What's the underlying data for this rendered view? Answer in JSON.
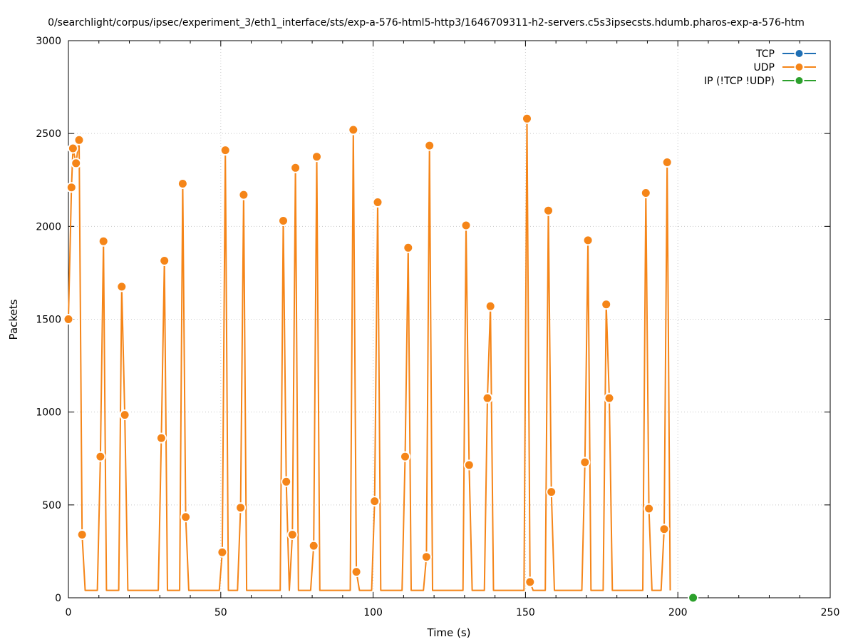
{
  "chart_data": {
    "type": "line",
    "title": "0/searchlight/corpus/ipsec/experiment_3/eth1_interface/sts/exp-a-576-html5-http3/1646709311-h2-servers.c5s3ipsecsts.hdumb.pharos-exp-a-576-htm",
    "xlabel": "Time (s)",
    "ylabel": "Packets",
    "xlim": [
      0,
      250
    ],
    "ylim": [
      0,
      3000
    ],
    "x_ticks": [
      "0",
      "50",
      "100",
      "150",
      "200",
      "250"
    ],
    "y_ticks": [
      "0",
      "500",
      "1000",
      "1500",
      "2000",
      "2500",
      "3000"
    ],
    "x_tick_values": [
      0,
      50,
      100,
      150,
      200,
      250
    ],
    "y_tick_values": [
      0,
      500,
      1000,
      1500,
      2000,
      2500,
      3000
    ],
    "grid": true,
    "legend_position": "top-right",
    "series": [
      {
        "name": "TCP",
        "color": "#1f6fb4",
        "points": []
      },
      {
        "name": "UDP",
        "color": "#f58518",
        "points": [
          [
            0,
            1500
          ],
          [
            1,
            2210
          ],
          [
            1.5,
            2420
          ],
          [
            2.5,
            2340
          ],
          [
            3.5,
            2465
          ],
          [
            4.5,
            340
          ],
          [
            5.5,
            40
          ],
          [
            9.5,
            40
          ],
          [
            10.5,
            760
          ],
          [
            11.5,
            1920
          ],
          [
            12.5,
            40
          ],
          [
            16.5,
            40
          ],
          [
            17.5,
            1675
          ],
          [
            18.5,
            985
          ],
          [
            19.5,
            40
          ],
          [
            29.5,
            40
          ],
          [
            30.5,
            860
          ],
          [
            31.5,
            1815
          ],
          [
            32.5,
            40
          ],
          [
            36.5,
            40
          ],
          [
            37.5,
            2230
          ],
          [
            38.5,
            435
          ],
          [
            39.5,
            40
          ],
          [
            49.5,
            40
          ],
          [
            50.5,
            245
          ],
          [
            51.5,
            2410
          ],
          [
            52.5,
            40
          ],
          [
            55.5,
            40
          ],
          [
            56.5,
            485
          ],
          [
            57.5,
            2170
          ],
          [
            58.5,
            40
          ],
          [
            69.5,
            40
          ],
          [
            70.5,
            2030
          ],
          [
            71.5,
            625
          ],
          [
            72.5,
            40
          ],
          [
            73.5,
            340
          ],
          [
            74.5,
            2315
          ],
          [
            75.5,
            40
          ],
          [
            79.5,
            40
          ],
          [
            80.5,
            280
          ],
          [
            81.5,
            2375
          ],
          [
            82.5,
            40
          ],
          [
            92.5,
            40
          ],
          [
            93.5,
            2520
          ],
          [
            94.5,
            140
          ],
          [
            95.5,
            40
          ],
          [
            99.5,
            40
          ],
          [
            100.5,
            520
          ],
          [
            101.5,
            2130
          ],
          [
            102.5,
            40
          ],
          [
            109.5,
            40
          ],
          [
            110.5,
            760
          ],
          [
            111.5,
            1885
          ],
          [
            112.5,
            40
          ],
          [
            116.5,
            40
          ],
          [
            117.5,
            220
          ],
          [
            118.5,
            2435
          ],
          [
            119.5,
            40
          ],
          [
            129.5,
            40
          ],
          [
            130.5,
            2005
          ],
          [
            131.5,
            715
          ],
          [
            132.5,
            40
          ],
          [
            136.5,
            40
          ],
          [
            137.5,
            1075
          ],
          [
            138.5,
            1570
          ],
          [
            139.5,
            40
          ],
          [
            149.5,
            40
          ],
          [
            150.5,
            2580
          ],
          [
            151.5,
            85
          ],
          [
            152.5,
            40
          ],
          [
            156.5,
            40
          ],
          [
            157.5,
            2085
          ],
          [
            158.5,
            570
          ],
          [
            159.5,
            40
          ],
          [
            168.5,
            40
          ],
          [
            169.5,
            730
          ],
          [
            170.5,
            1925
          ],
          [
            171.5,
            40
          ],
          [
            175.5,
            40
          ],
          [
            176.5,
            1580
          ],
          [
            177.5,
            1075
          ],
          [
            178.5,
            40
          ],
          [
            188.5,
            40
          ],
          [
            189.5,
            2180
          ],
          [
            190.5,
            480
          ],
          [
            191.5,
            40
          ],
          [
            194.5,
            40
          ],
          [
            195.5,
            370
          ],
          [
            196.5,
            2345
          ],
          [
            197.5,
            40
          ]
        ],
        "markers": [
          [
            0,
            1500
          ],
          [
            1,
            2210
          ],
          [
            1.5,
            2420
          ],
          [
            2.5,
            2340
          ],
          [
            3.5,
            2465
          ],
          [
            4.5,
            340
          ],
          [
            10.5,
            760
          ],
          [
            11.5,
            1920
          ],
          [
            17.5,
            1675
          ],
          [
            18.5,
            985
          ],
          [
            30.5,
            860
          ],
          [
            31.5,
            1815
          ],
          [
            37.5,
            2230
          ],
          [
            38.5,
            435
          ],
          [
            50.5,
            245
          ],
          [
            51.5,
            2410
          ],
          [
            56.5,
            485
          ],
          [
            57.5,
            2170
          ],
          [
            70.5,
            2030
          ],
          [
            71.5,
            625
          ],
          [
            73.5,
            340
          ],
          [
            74.5,
            2315
          ],
          [
            80.5,
            280
          ],
          [
            81.5,
            2375
          ],
          [
            93.5,
            2520
          ],
          [
            94.5,
            140
          ],
          [
            100.5,
            520
          ],
          [
            101.5,
            2130
          ],
          [
            110.5,
            760
          ],
          [
            111.5,
            1885
          ],
          [
            117.5,
            220
          ],
          [
            118.5,
            2435
          ],
          [
            130.5,
            2005
          ],
          [
            131.5,
            715
          ],
          [
            137.5,
            1075
          ],
          [
            138.5,
            1570
          ],
          [
            150.5,
            2580
          ],
          [
            151.5,
            85
          ],
          [
            157.5,
            2085
          ],
          [
            158.5,
            570
          ],
          [
            169.5,
            730
          ],
          [
            170.5,
            1925
          ],
          [
            176.5,
            1580
          ],
          [
            177.5,
            1075
          ],
          [
            189.5,
            2180
          ],
          [
            190.5,
            480
          ],
          [
            195.5,
            370
          ],
          [
            196.5,
            2345
          ]
        ]
      },
      {
        "name": "IP (!TCP  !UDP)",
        "color": "#2ca02c",
        "points": [],
        "markers": [
          [
            205,
            0
          ]
        ]
      }
    ]
  }
}
